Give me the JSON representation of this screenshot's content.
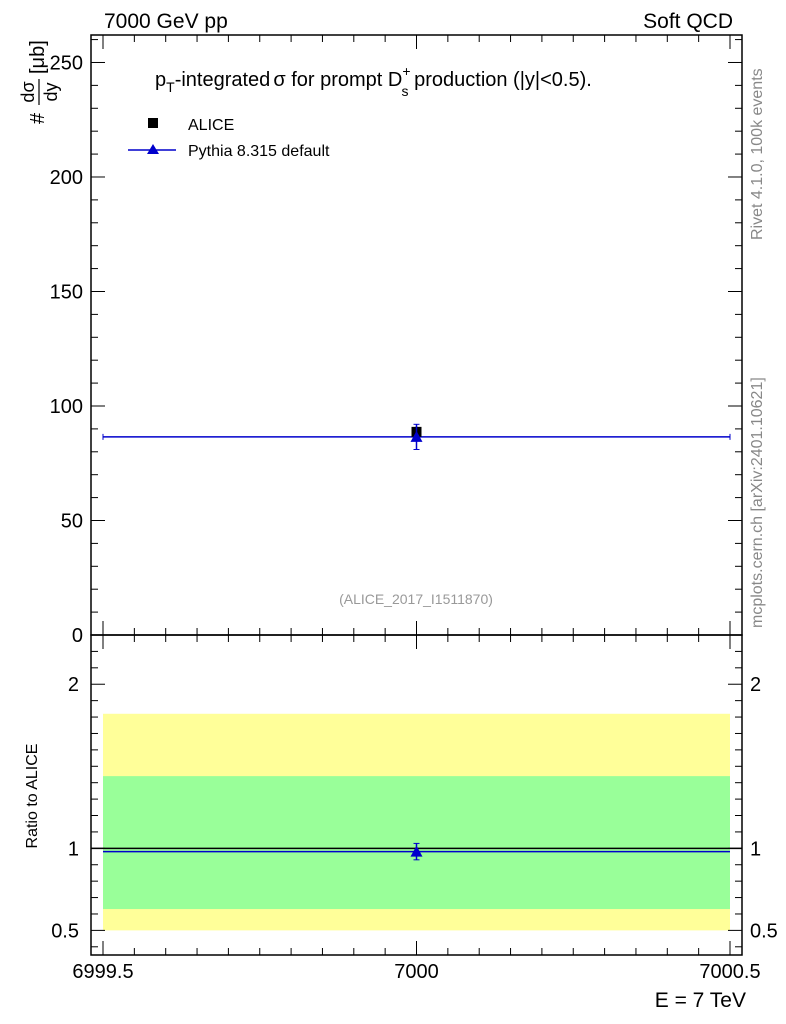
{
  "header": {
    "left": "7000 GeV pp",
    "right": "Soft QCD"
  },
  "side_labels": {
    "rivet": "Rivet 4.1.0,  100k events",
    "source": "mcplots.cern.ch [arXiv:2401.10621]"
  },
  "main_plot": {
    "title_parts": {
      "p": "p",
      "p_sub": "T",
      "rest1": "-integrated",
      "sigma": "σ",
      "rest2": " for prompt D",
      "d_sup": "+",
      "d_sub": "s",
      "rest3": " production (|y|<0.5)."
    },
    "ylabel_parts": {
      "hash": "#",
      "numer": "dσ",
      "denom": "dy",
      "unit": "[μb]"
    },
    "watermark": "(ALICE_2017_I1511870)",
    "legend": [
      {
        "label": "ALICE",
        "marker": "square",
        "color": "#000000"
      },
      {
        "label": "Pythia 8.315 default",
        "marker": "triangle",
        "color": "#0000cc"
      }
    ]
  },
  "ratio_plot": {
    "ylabel": "Ratio to ALICE"
  },
  "xaxis": {
    "label": "E = 7 TeV"
  },
  "colors": {
    "data": "#000000",
    "mc": "#0000cc",
    "band_inner": "#99ff99",
    "band_outer": "#ffff99"
  },
  "chart_data": [
    {
      "type": "scatter",
      "panel": "main",
      "title": "pT-integrated σ for prompt Ds+ production (|y|<0.5).",
      "xlabel": "E = 7 TeV",
      "ylabel": "#dσ/dy [μb]",
      "xlim": [
        6999.5,
        7000.5
      ],
      "ylim": [
        0,
        262
      ],
      "x_ticks": [
        6999.5,
        7000,
        7000.5
      ],
      "x_tick_labels": [
        "6999.5",
        "7000",
        "7000.5"
      ],
      "y_ticks": [
        0,
        50,
        100,
        150,
        200,
        250
      ],
      "y_tick_labels": [
        "0",
        "50",
        "100",
        "150",
        "200",
        "250"
      ],
      "series": [
        {
          "name": "ALICE",
          "x": [
            7000
          ],
          "y": [
            88.7
          ],
          "yerr_low": [
            2.4
          ],
          "yerr_high": [
            2.4
          ],
          "xerr": [
            0
          ],
          "marker": "square"
        },
        {
          "name": "Pythia 8.315 default",
          "x": [
            7000
          ],
          "y": [
            86.5
          ],
          "yerr_low": [
            5.5
          ],
          "yerr_high": [
            5.5
          ],
          "x_low": [
            6999.5
          ],
          "x_high": [
            7000.5
          ],
          "marker": "triangle"
        }
      ]
    },
    {
      "type": "scatter",
      "panel": "ratio",
      "ylabel": "Ratio to ALICE",
      "xlim": [
        6999.5,
        7000.5
      ],
      "ylim": [
        0.35,
        2.3
      ],
      "y_ticks": [
        0.5,
        1,
        2
      ],
      "y_tick_labels": [
        "0.5",
        "1",
        "2"
      ],
      "bands": [
        {
          "kind": "outer",
          "low": 0.5,
          "high": 1.82
        },
        {
          "kind": "inner",
          "low": 0.63,
          "high": 1.44
        }
      ],
      "reference": 1.0,
      "series": [
        {
          "name": "Pythia 8.315 default",
          "x": [
            7000
          ],
          "y": [
            0.98
          ],
          "yerr_low": [
            0.05
          ],
          "yerr_high": [
            0.05
          ],
          "x_low": [
            6999.5
          ],
          "x_high": [
            7000.5
          ]
        }
      ]
    }
  ]
}
